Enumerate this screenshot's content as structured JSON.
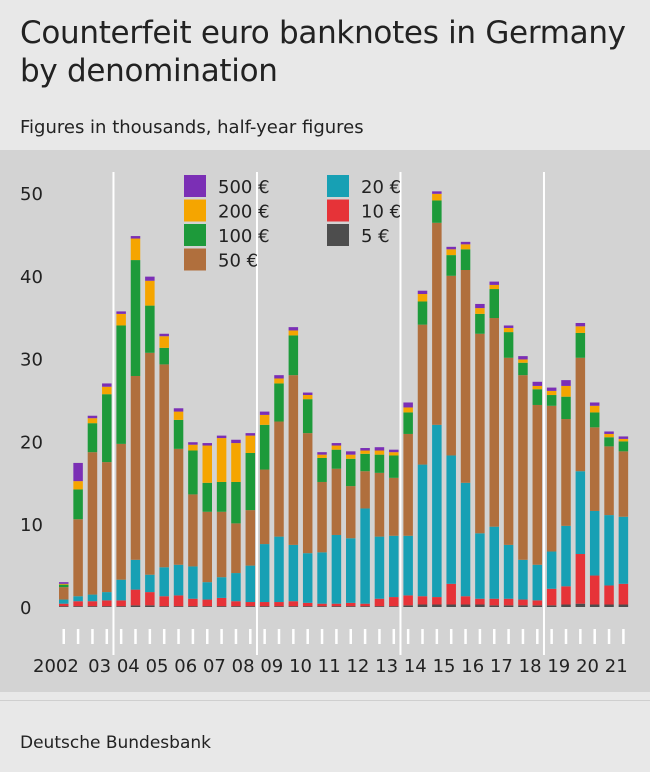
{
  "title": "Counterfeit euro banknotes in Germany by denomination",
  "subtitle": "Figures in thousands, half-year figures",
  "source": "Deutsche Bundesbank",
  "chart_data": {
    "type": "bar",
    "stacked": true,
    "ylim": [
      0,
      50
    ],
    "yticks": [
      0,
      10,
      20,
      30,
      40,
      50
    ],
    "grid": "vertical lines at 2004, 2009, 2014, 2019",
    "legend_position": "top-left, inside plot",
    "year_labels": [
      "2002",
      "03",
      "04",
      "05",
      "06",
      "07",
      "08",
      "09",
      "10",
      "11",
      "12",
      "13",
      "14",
      "15",
      "16",
      "17",
      "18",
      "19",
      "20",
      "21"
    ],
    "categories": [
      "2002 H1",
      "2002 H2",
      "2003 H1",
      "2003 H2",
      "2004 H1",
      "2004 H2",
      "2005 H1",
      "2005 H2",
      "2006 H1",
      "2006 H2",
      "2007 H1",
      "2007 H2",
      "2008 H1",
      "2008 H2",
      "2009 H1",
      "2009 H2",
      "2010 H1",
      "2010 H2",
      "2011 H1",
      "2011 H2",
      "2012 H1",
      "2012 H2",
      "2013 H1",
      "2013 H2",
      "2014 H1",
      "2014 H2",
      "2015 H1",
      "2015 H2",
      "2016 H1",
      "2016 H2",
      "2017 H1",
      "2017 H2",
      "2018 H1",
      "2018 H2",
      "2019 H1",
      "2019 H2",
      "2020 H1",
      "2020 H2",
      "2021 H1",
      "2021 H2"
    ],
    "series": [
      {
        "name": "5 €",
        "color": "#4d4d4d",
        "values": [
          0.1,
          0.1,
          0.1,
          0.1,
          0.1,
          0.2,
          0.2,
          0.1,
          0.1,
          0.1,
          0.1,
          0.1,
          0.1,
          0.1,
          0.1,
          0.1,
          0.1,
          0.1,
          0.1,
          0.1,
          0.1,
          0.1,
          0.1,
          0.1,
          0.2,
          0.3,
          0.3,
          0.3,
          0.3,
          0.3,
          0.2,
          0.2,
          0.2,
          0.2,
          0.2,
          0.3,
          0.4,
          0.3,
          0.3,
          0.3
        ]
      },
      {
        "name": "10 €",
        "color": "#e63338",
        "values": [
          0.3,
          0.6,
          0.6,
          0.7,
          0.7,
          1.9,
          1.6,
          1.2,
          1.3,
          0.9,
          0.8,
          1.0,
          0.6,
          0.5,
          0.5,
          0.5,
          0.6,
          0.4,
          0.3,
          0.3,
          0.4,
          0.3,
          0.9,
          1.1,
          1.2,
          1.0,
          0.9,
          2.5,
          1.0,
          0.7,
          0.8,
          0.8,
          0.7,
          0.6,
          2.0,
          2.2,
          6.0,
          3.5,
          2.3,
          2.5
        ]
      },
      {
        "name": "20 €",
        "color": "#17a0b4",
        "values": [
          0.5,
          0.6,
          0.8,
          1.0,
          2.5,
          3.6,
          2.1,
          3.5,
          3.7,
          3.9,
          2.1,
          2.5,
          3.4,
          4.4,
          7.0,
          7.9,
          6.8,
          6.0,
          6.2,
          8.3,
          7.8,
          11.5,
          7.5,
          7.4,
          7.2,
          15.9,
          20.8,
          15.5,
          13.7,
          7.9,
          8.7,
          6.5,
          4.8,
          4.3,
          4.5,
          7.3,
          10.0,
          7.8,
          8.5,
          8.1
        ]
      },
      {
        "name": "50 €",
        "color": "#b06f3d",
        "values": [
          1.5,
          9.3,
          17.2,
          15.7,
          16.4,
          22.2,
          26.8,
          24.5,
          14.0,
          8.7,
          8.5,
          7.9,
          6.0,
          6.7,
          9.0,
          13.9,
          20.5,
          14.5,
          8.5,
          8.0,
          6.3,
          4.5,
          7.7,
          7.0,
          12.3,
          16.9,
          24.4,
          21.7,
          25.7,
          24.1,
          25.2,
          22.6,
          22.3,
          19.3,
          17.6,
          12.9,
          13.7,
          10.1,
          8.3,
          7.9
        ]
      },
      {
        "name": "100 €",
        "color": "#1d9a3a",
        "values": [
          0.3,
          3.6,
          3.5,
          8.2,
          14.3,
          14.0,
          5.7,
          2.0,
          3.5,
          5.3,
          3.5,
          3.6,
          5.0,
          6.9,
          5.4,
          4.6,
          4.8,
          4.1,
          2.9,
          2.3,
          3.3,
          2.1,
          2.2,
          2.7,
          2.6,
          2.8,
          2.7,
          2.5,
          2.5,
          2.4,
          3.5,
          3.1,
          1.5,
          1.9,
          1.3,
          2.7,
          3.0,
          1.8,
          1.1,
          1.2
        ]
      },
      {
        "name": "200 €",
        "color": "#f5a500",
        "values": [
          0.1,
          1.0,
          0.6,
          0.9,
          1.4,
          2.6,
          3.0,
          1.4,
          1.0,
          0.7,
          4.5,
          5.3,
          4.7,
          2.1,
          1.2,
          0.6,
          0.6,
          0.5,
          0.4,
          0.5,
          0.5,
          0.4,
          0.5,
          0.4,
          0.6,
          0.9,
          0.8,
          0.7,
          0.6,
          0.7,
          0.5,
          0.5,
          0.4,
          0.4,
          0.5,
          1.3,
          0.8,
          0.8,
          0.4,
          0.3
        ]
      },
      {
        "name": "500 €",
        "color": "#7b2fb5",
        "values": [
          0.2,
          2.2,
          0.3,
          0.4,
          0.3,
          0.3,
          0.5,
          0.3,
          0.4,
          0.3,
          0.3,
          0.3,
          0.4,
          0.3,
          0.4,
          0.4,
          0.4,
          0.3,
          0.3,
          0.3,
          0.4,
          0.3,
          0.4,
          0.3,
          0.6,
          0.4,
          0.3,
          0.3,
          0.3,
          0.5,
          0.4,
          0.3,
          0.4,
          0.5,
          0.4,
          0.7,
          0.4,
          0.4,
          0.3,
          0.3
        ]
      }
    ]
  }
}
